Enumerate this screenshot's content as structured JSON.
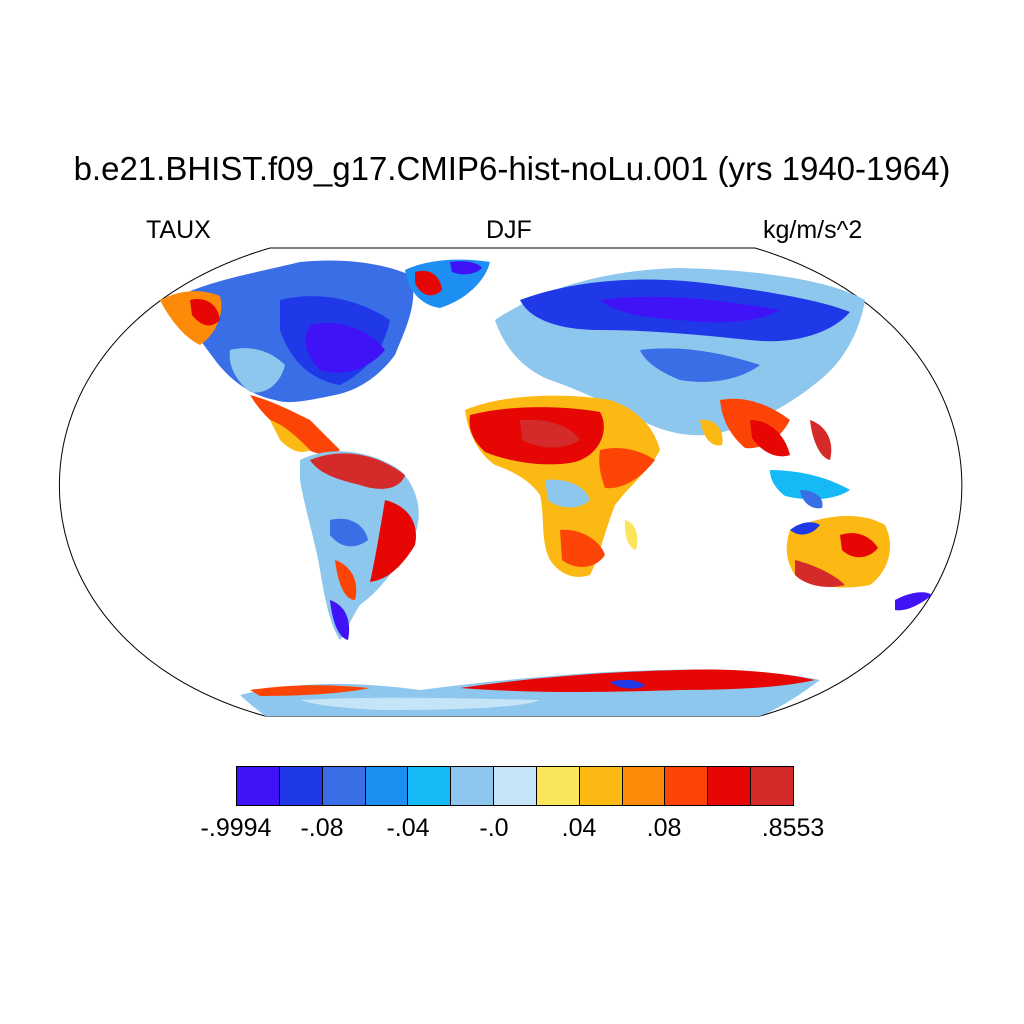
{
  "title": "b.e21.BHIST.f09_g17.CMIP6-hist-noLu.001 (yrs 1940-1964)",
  "left_label": "TAUX",
  "center_label": "DJF",
  "right_label": "kg/m/s^2",
  "legend": {
    "colors": [
      "#3f13f5",
      "#1f39e8",
      "#3a6ee6",
      "#1e8ff2",
      "#14b9f5",
      "#8ec7ee",
      "#c6e4f8",
      "#fbe55a",
      "#fcb813",
      "#fd8a09",
      "#fd4407",
      "#e60604",
      "#d42a2a"
    ],
    "labels": [
      "-.9994",
      "-.08",
      "-.04",
      "-.0",
      ".04",
      ".08",
      ".8553"
    ]
  },
  "chart_data": {
    "type": "heatmap",
    "projection": "Robinson",
    "variable": "TAUX",
    "season": "DJF",
    "units": "kg/m/s^2",
    "range": [
      -0.9994,
      0.8553
    ],
    "colorbar_labels": [
      "-.9994",
      "-.08",
      "-.04",
      "-.0",
      ".04",
      ".08",
      ".8553"
    ],
    "regions": [
      {
        "name": "North America",
        "level": "negative"
      },
      {
        "name": "Alaska",
        "level": "positive"
      },
      {
        "name": "Greenland",
        "level": "positive"
      },
      {
        "name": "Europe/Asia",
        "level": "negative"
      },
      {
        "name": "North Africa / Sahel",
        "level": "positive"
      },
      {
        "name": "South America (north)",
        "level": "positive"
      },
      {
        "name": "Southern South America",
        "level": "negative"
      },
      {
        "name": "Southern Africa",
        "level": "positive"
      },
      {
        "name": "Australia",
        "level": "positive"
      },
      {
        "name": "Antarctica",
        "level": "positive"
      }
    ]
  }
}
